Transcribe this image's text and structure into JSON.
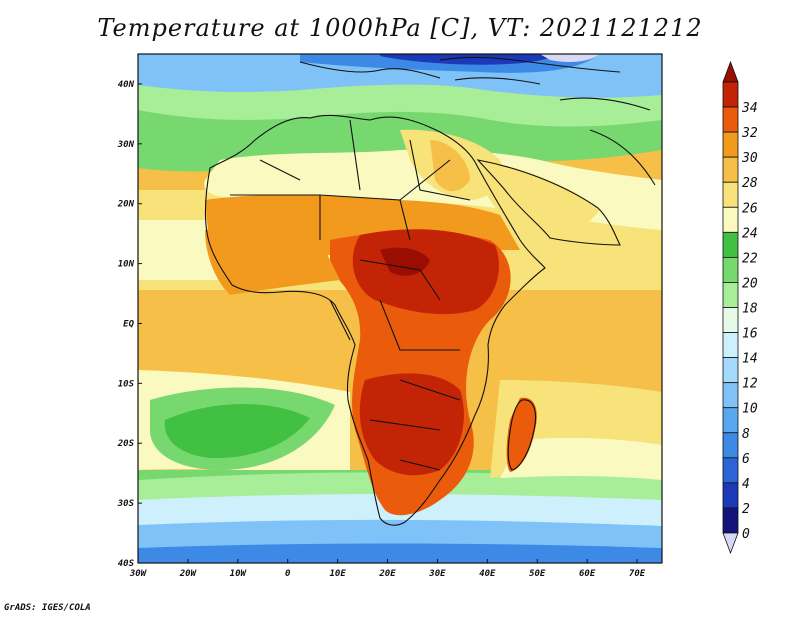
{
  "title": "Temperature at 1000hPa [C], VT: 2021121212",
  "credit": "GrADS: IGES/COLA",
  "map": {
    "lon_range": [
      -30,
      75
    ],
    "lat_range": [
      -40,
      45
    ],
    "lon_ticks": [
      {
        "value": -30,
        "label": "30W"
      },
      {
        "value": -20,
        "label": "20W"
      },
      {
        "value": -10,
        "label": "10W"
      },
      {
        "value": 0,
        "label": "0"
      },
      {
        "value": 10,
        "label": "10E"
      },
      {
        "value": 20,
        "label": "20E"
      },
      {
        "value": 30,
        "label": "30E"
      },
      {
        "value": 40,
        "label": "40E"
      },
      {
        "value": 50,
        "label": "50E"
      },
      {
        "value": 60,
        "label": "60E"
      },
      {
        "value": 70,
        "label": "70E"
      }
    ],
    "lat_ticks": [
      {
        "value": 40,
        "label": "40N"
      },
      {
        "value": 30,
        "label": "30N"
      },
      {
        "value": 20,
        "label": "20N"
      },
      {
        "value": 10,
        "label": "10N"
      },
      {
        "value": 0,
        "label": "EQ"
      },
      {
        "value": -10,
        "label": "10S"
      },
      {
        "value": -20,
        "label": "20S"
      },
      {
        "value": -30,
        "label": "30S"
      },
      {
        "value": -40,
        "label": "40S"
      }
    ]
  },
  "colorbar": {
    "levels": [
      "0",
      "2",
      "4",
      "6",
      "8",
      "10",
      "12",
      "14",
      "16",
      "18",
      "20",
      "22",
      "24",
      "26",
      "28",
      "30",
      "32",
      "34"
    ],
    "colors": [
      "#d9d9f7",
      "#14147a",
      "#1c3ab8",
      "#2a64d6",
      "#3c8ae6",
      "#58a8f0",
      "#7fc2f8",
      "#a6dafc",
      "#cdf0fc",
      "#e6fae6",
      "#a8ee98",
      "#78d870",
      "#42c042",
      "#fafac0",
      "#f8e27a",
      "#f6c048",
      "#f29a1e",
      "#ea5c0c",
      "#c42406",
      "#9a0e02"
    ]
  },
  "chart_data": {
    "type": "heatmap",
    "variable": "Temperature at 1000hPa",
    "units": "C",
    "valid_time": "2021121212",
    "xlim": [
      -30,
      75
    ],
    "ylim": [
      -40,
      45
    ]
  }
}
